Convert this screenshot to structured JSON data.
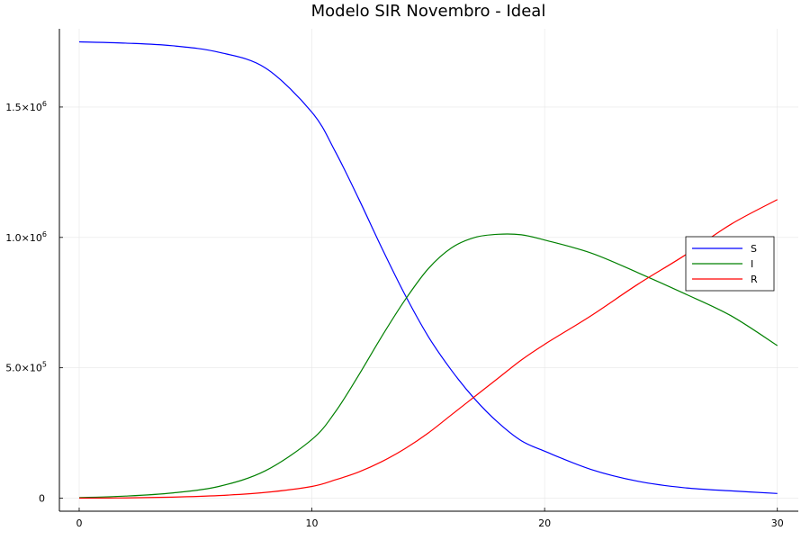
{
  "chart_data": {
    "type": "line",
    "title": "Modelo SIR Novembro - Ideal",
    "xlabel": "",
    "ylabel": "",
    "xlim": [
      -0.85,
      30.9
    ],
    "ylim": [
      -50000,
      1800000
    ],
    "grid": true,
    "legend_position": "right",
    "x_ticks": [
      {
        "value": 0,
        "label": "0"
      },
      {
        "value": 10,
        "label": "10"
      },
      {
        "value": 20,
        "label": "20"
      },
      {
        "value": 30,
        "label": "30"
      }
    ],
    "y_ticks": [
      {
        "value": 0,
        "label": "0"
      },
      {
        "value": 500000,
        "mantissa": "5.0×10",
        "exp": "5"
      },
      {
        "value": 1000000,
        "mantissa": "1.0×10",
        "exp": "6"
      },
      {
        "value": 1500000,
        "mantissa": "1.5×10",
        "exp": "6"
      }
    ],
    "x": [
      0,
      2,
      4,
      6,
      8,
      10,
      11,
      12,
      13,
      14,
      15,
      16,
      17,
      18,
      19,
      20,
      22,
      24,
      26,
      28,
      30
    ],
    "series": [
      {
        "name": "S",
        "color": "#0000ff",
        "values": [
          1750000,
          1745000,
          1735000,
          1710000,
          1650000,
          1480000,
          1330000,
          1150000,
          960000,
          780000,
          620000,
          490000,
          380000,
          290000,
          220000,
          180000,
          110000,
          65000,
          40000,
          28000,
          18000
        ]
      },
      {
        "name": "I",
        "color": "#008000",
        "values": [
          2000,
          8000,
          20000,
          45000,
          105000,
          225000,
          330000,
          470000,
          620000,
          760000,
          880000,
          960000,
          1000000,
          1012000,
          1010000,
          990000,
          940000,
          865000,
          785000,
          700000,
          585000
        ]
      },
      {
        "name": "R",
        "color": "#ff0000",
        "values": [
          0,
          1000,
          4000,
          10000,
          22000,
          45000,
          70000,
          100000,
          140000,
          190000,
          250000,
          320000,
          390000,
          460000,
          530000,
          590000,
          700000,
          820000,
          930000,
          1050000,
          1145000
        ]
      }
    ]
  }
}
